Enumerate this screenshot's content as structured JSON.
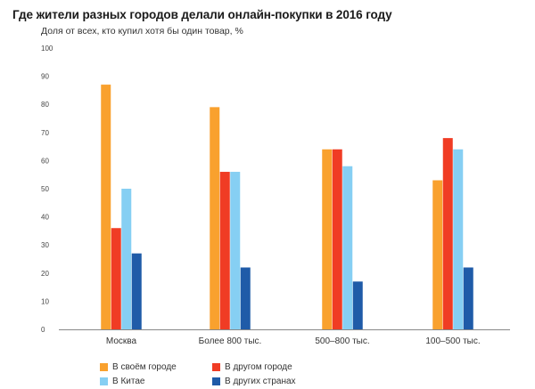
{
  "chart_data": {
    "type": "bar",
    "title": "Где жители разных городов делали онлайн-покупки в 2016 году",
    "ylabel": "Доля от всех, кто купил хотя бы один товар, %",
    "ylim": [
      0,
      100
    ],
    "yticks": [
      "0",
      "10",
      "20",
      "30",
      "40",
      "50",
      "60",
      "70",
      "80",
      "90",
      "100"
    ],
    "categories": [
      "Москва",
      "Более 800 тыс.",
      "500–800 тыс.",
      "100–500 тыс."
    ],
    "series": [
      {
        "name": "В своём городе",
        "color": "#F9A12E",
        "values": [
          87,
          79,
          64,
          53
        ]
      },
      {
        "name": "В другом городе",
        "color": "#F03C24",
        "values": [
          36,
          56,
          64,
          68
        ]
      },
      {
        "name": "В Китае",
        "color": "#86CFF3",
        "values": [
          50,
          56,
          58,
          64
        ]
      },
      {
        "name": "В других странах",
        "color": "#1F5BA8",
        "values": [
          27,
          22,
          17,
          22
        ]
      }
    ],
    "grid": false,
    "legend_position": "bottom"
  }
}
